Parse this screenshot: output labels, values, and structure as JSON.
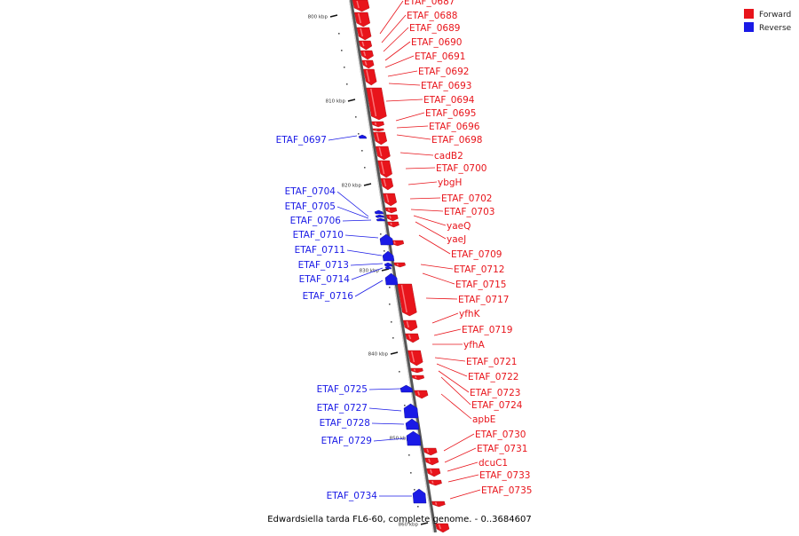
{
  "legend": [
    {
      "name": "Forward",
      "color": "#e8141b"
    },
    {
      "name": "Reverse",
      "color": "#1a1ae6"
    }
  ],
  "caption": "Edwardsiella tarda FL6-60, complete genome. - 0..3684607",
  "colors": {
    "forward": "#e8141b",
    "reverse": "#1a1ae6",
    "backbone": "#888888"
  },
  "ticks": [
    {
      "label": "800 kbp",
      "kbp": 800
    },
    {
      "label": "810 kbp",
      "kbp": 810
    },
    {
      "label": "820 kbp",
      "kbp": 820
    },
    {
      "label": "830 kbp",
      "kbp": 830
    },
    {
      "label": "840 kbp",
      "kbp": 840
    },
    {
      "label": "850 kbp",
      "kbp": 850
    },
    {
      "label": "860 kbp",
      "kbp": 860
    }
  ],
  "forward_genes": [
    "ETAF_0687",
    "ETAF_0688",
    "ETAF_0689",
    "ETAF_0690",
    "ETAF_0691",
    "ETAF_0692",
    "ETAF_0693",
    "ETAF_0694",
    "ETAF_0695",
    "ETAF_0696",
    "ETAF_0698",
    "cadB2",
    "ETAF_0700",
    "ybgH",
    "ETAF_0702",
    "ETAF_0703",
    "yaeQ",
    "yaeJ",
    "ETAF_0709",
    "ETAF_0712",
    "ETAF_0715",
    "ETAF_0717",
    "yfhK",
    "ETAF_0719",
    "yfhA",
    "ETAF_0721",
    "ETAF_0722",
    "ETAF_0723",
    "ETAF_0724",
    "apbE",
    "ETAF_0730",
    "ETAF_0731",
    "dcuC1",
    "ETAF_0733",
    "ETAF_0735"
  ],
  "reverse_genes": [
    "ETAF_0697",
    "ETAF_0704",
    "ETAF_0705",
    "ETAF_0706",
    "ETAF_0710",
    "ETAF_0711",
    "ETAF_0713",
    "ETAF_0714",
    "ETAF_0716",
    "ETAF_0725",
    "ETAF_0727",
    "ETAF_0728",
    "ETAF_0729",
    "ETAF_0734"
  ]
}
